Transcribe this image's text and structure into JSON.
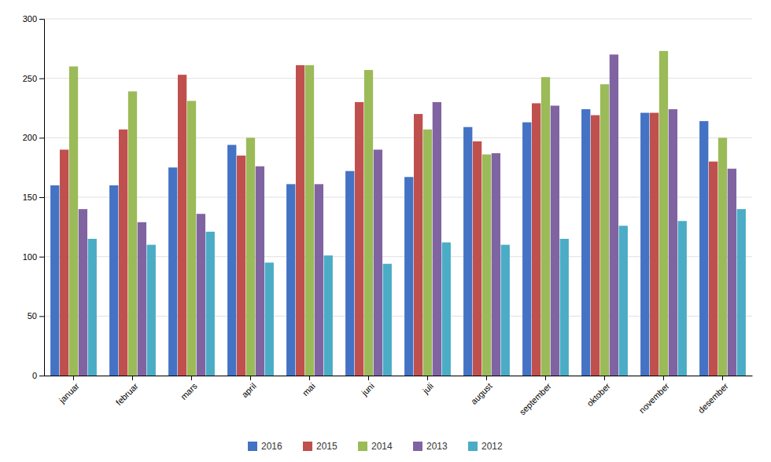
{
  "chart_data": {
    "type": "bar",
    "categories": [
      "januar",
      "februar",
      "mars",
      "april",
      "mai",
      "juni",
      "juli",
      "august",
      "september",
      "oktober",
      "november",
      "desember"
    ],
    "series": [
      {
        "name": "2016",
        "color": "#4472C4",
        "values": [
          160,
          160,
          175,
          194,
          161,
          172,
          167,
          209,
          213,
          224,
          221,
          214
        ]
      },
      {
        "name": "2015",
        "color": "#C0504D",
        "values": [
          190,
          207,
          253,
          185,
          261,
          230,
          220,
          197,
          229,
          219,
          221,
          180
        ]
      },
      {
        "name": "2014",
        "color": "#9BBB59",
        "values": [
          260,
          239,
          231,
          200,
          261,
          257,
          207,
          186,
          251,
          245,
          273,
          200
        ]
      },
      {
        "name": "2013",
        "color": "#8064A2",
        "values": [
          140,
          129,
          136,
          176,
          161,
          190,
          230,
          187,
          227,
          270,
          224,
          174
        ]
      },
      {
        "name": "2012",
        "color": "#4BACC6",
        "values": [
          115,
          110,
          121,
          95,
          101,
          94,
          112,
          110,
          115,
          126,
          130,
          140
        ]
      }
    ],
    "ylim": [
      0,
      300
    ],
    "yticks": [
      0,
      50,
      100,
      150,
      200,
      250,
      300
    ],
    "grid": true,
    "legend": "bottom"
  }
}
